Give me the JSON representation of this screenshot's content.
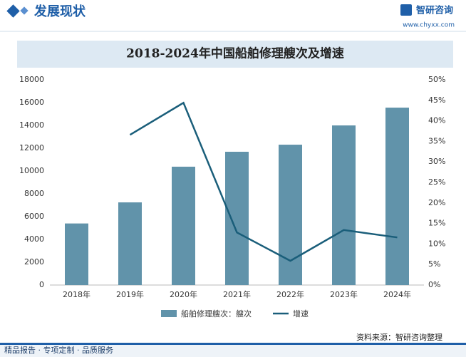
{
  "header": {
    "section_title": "发展现状",
    "brand": "智研咨询",
    "url": "www.chyxx.com"
  },
  "footer": {
    "slogan": "精品报告 · 专项定制 · 品质服务",
    "source": "资料来源：智研咨询整理"
  },
  "chart_data": {
    "type": "bar_line",
    "title": "2018-2024年中国船舶修理艘次及增速",
    "categories": [
      "2018年",
      "2019年",
      "2020年",
      "2021年",
      "2022年",
      "2023年",
      "2024年"
    ],
    "series": [
      {
        "name": "船舶修理艘次：艘次",
        "type": "bar",
        "color": "#6193aa",
        "values": [
          5400,
          7250,
          10380,
          11690,
          12310,
          14000,
          15560
        ]
      },
      {
        "name": "增速",
        "type": "line",
        "color": "#1a5e7a",
        "axis": "y2",
        "values": [
          null,
          36.6,
          44.4,
          12.8,
          5.9,
          13.4,
          11.6
        ]
      }
    ],
    "ylim": [
      0,
      18000
    ],
    "yticks": [
      0,
      2000,
      4000,
      6000,
      8000,
      10000,
      12000,
      14000,
      16000,
      18000
    ],
    "y2lim": [
      0,
      50
    ],
    "y2ticks": [
      {
        "value": 0,
        "label": "0%"
      },
      {
        "value": 5,
        "label": "5%"
      },
      {
        "value": 10,
        "label": "10%"
      },
      {
        "value": 15,
        "label": "15%"
      },
      {
        "value": 20,
        "label": "20%"
      },
      {
        "value": 25,
        "label": "25%"
      },
      {
        "value": 30,
        "label": "30%"
      },
      {
        "value": 35,
        "label": "35%"
      },
      {
        "value": 40,
        "label": "40%"
      },
      {
        "value": 45,
        "label": "45%"
      },
      {
        "value": 50,
        "label": "50%"
      }
    ],
    "legend": "bottom"
  }
}
